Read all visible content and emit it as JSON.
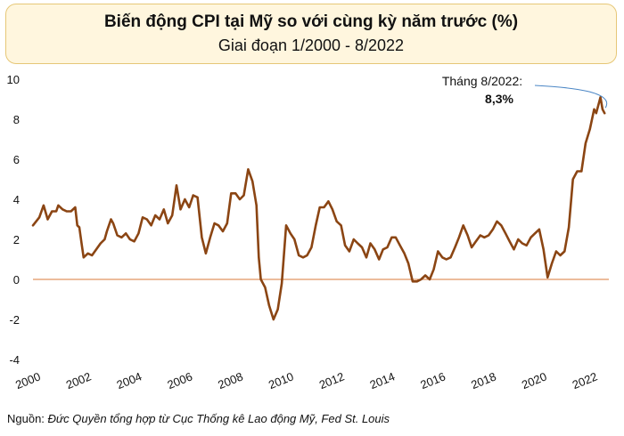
{
  "header": {
    "title": "Biến động CPI tại Mỹ so với cùng kỳ năm trước (%)",
    "subtitle": "Giai đoạn 1/2000 - 8/2022"
  },
  "annotation": {
    "line1": "Tháng 8/2022:",
    "line2": "8,3%"
  },
  "footer": {
    "source_prefix": "Nguồn:",
    "source_text": "Đức Quyền tổng hợp từ Cục Thống kê Lao động Mỹ, Fed St. Louis"
  },
  "colors": {
    "series": "#8b4513",
    "zero_line": "#d9793a",
    "title_bg": "#fff6de",
    "title_border": "#e6c777",
    "callout": "#4a86c5"
  },
  "chart_data": {
    "type": "line",
    "title": "Biến động CPI tại Mỹ so với cùng kỳ năm trước (%)",
    "subtitle": "Giai đoạn 1/2000 - 8/2022",
    "xlabel": "",
    "ylabel": "",
    "xlim": [
      2000,
      2022.75
    ],
    "ylim": [
      -4,
      10
    ],
    "x_ticks": [
      2000,
      2002,
      2004,
      2006,
      2008,
      2010,
      2012,
      2014,
      2016,
      2018,
      2020,
      2022
    ],
    "y_ticks": [
      -4,
      -2,
      0,
      2,
      4,
      6,
      8,
      10
    ],
    "grid": false,
    "zero_line": true,
    "series": [
      {
        "points": [
          [
            2000.0,
            2.7
          ],
          [
            2000.25,
            3.1
          ],
          [
            2000.42,
            3.7
          ],
          [
            2000.58,
            3.0
          ],
          [
            2000.75,
            3.4
          ],
          [
            2000.92,
            3.4
          ],
          [
            2001.0,
            3.7
          ],
          [
            2001.17,
            3.5
          ],
          [
            2001.33,
            3.4
          ],
          [
            2001.5,
            3.4
          ],
          [
            2001.67,
            3.6
          ],
          [
            2001.75,
            2.7
          ],
          [
            2001.83,
            2.6
          ],
          [
            2001.92,
            1.8
          ],
          [
            2002.0,
            1.1
          ],
          [
            2002.17,
            1.3
          ],
          [
            2002.33,
            1.2
          ],
          [
            2002.5,
            1.5
          ],
          [
            2002.67,
            1.8
          ],
          [
            2002.83,
            2.0
          ],
          [
            2002.92,
            2.4
          ],
          [
            2003.08,
            3.0
          ],
          [
            2003.17,
            2.8
          ],
          [
            2003.33,
            2.2
          ],
          [
            2003.5,
            2.1
          ],
          [
            2003.67,
            2.3
          ],
          [
            2003.83,
            2.0
          ],
          [
            2004.0,
            1.9
          ],
          [
            2004.17,
            2.3
          ],
          [
            2004.33,
            3.1
          ],
          [
            2004.5,
            3.0
          ],
          [
            2004.67,
            2.7
          ],
          [
            2004.83,
            3.2
          ],
          [
            2005.0,
            3.0
          ],
          [
            2005.17,
            3.5
          ],
          [
            2005.33,
            2.8
          ],
          [
            2005.5,
            3.2
          ],
          [
            2005.67,
            4.7
          ],
          [
            2005.83,
            3.5
          ],
          [
            2006.0,
            4.0
          ],
          [
            2006.17,
            3.6
          ],
          [
            2006.33,
            4.2
          ],
          [
            2006.5,
            4.1
          ],
          [
            2006.67,
            2.1
          ],
          [
            2006.83,
            1.3
          ],
          [
            2007.0,
            2.1
          ],
          [
            2007.17,
            2.8
          ],
          [
            2007.33,
            2.7
          ],
          [
            2007.5,
            2.4
          ],
          [
            2007.67,
            2.8
          ],
          [
            2007.83,
            4.3
          ],
          [
            2008.0,
            4.3
          ],
          [
            2008.17,
            4.0
          ],
          [
            2008.33,
            4.2
          ],
          [
            2008.5,
            5.5
          ],
          [
            2008.67,
            4.9
          ],
          [
            2008.83,
            3.7
          ],
          [
            2008.92,
            1.1
          ],
          [
            2009.0,
            0.0
          ],
          [
            2009.17,
            -0.4
          ],
          [
            2009.33,
            -1.3
          ],
          [
            2009.5,
            -2.0
          ],
          [
            2009.67,
            -1.5
          ],
          [
            2009.83,
            -0.2
          ],
          [
            2010.0,
            2.7
          ],
          [
            2010.17,
            2.3
          ],
          [
            2010.33,
            2.0
          ],
          [
            2010.5,
            1.2
          ],
          [
            2010.67,
            1.1
          ],
          [
            2010.83,
            1.2
          ],
          [
            2011.0,
            1.6
          ],
          [
            2011.17,
            2.7
          ],
          [
            2011.33,
            3.6
          ],
          [
            2011.5,
            3.6
          ],
          [
            2011.67,
            3.9
          ],
          [
            2011.83,
            3.5
          ],
          [
            2012.0,
            2.9
          ],
          [
            2012.17,
            2.7
          ],
          [
            2012.33,
            1.7
          ],
          [
            2012.5,
            1.4
          ],
          [
            2012.67,
            2.0
          ],
          [
            2012.83,
            1.8
          ],
          [
            2013.0,
            1.6
          ],
          [
            2013.17,
            1.1
          ],
          [
            2013.33,
            1.8
          ],
          [
            2013.5,
            1.5
          ],
          [
            2013.67,
            1.0
          ],
          [
            2013.83,
            1.5
          ],
          [
            2014.0,
            1.6
          ],
          [
            2014.17,
            2.1
          ],
          [
            2014.33,
            2.1
          ],
          [
            2014.5,
            1.7
          ],
          [
            2014.67,
            1.3
          ],
          [
            2014.83,
            0.8
          ],
          [
            2015.0,
            -0.1
          ],
          [
            2015.17,
            -0.1
          ],
          [
            2015.33,
            0.0
          ],
          [
            2015.5,
            0.2
          ],
          [
            2015.67,
            0.0
          ],
          [
            2015.83,
            0.5
          ],
          [
            2016.0,
            1.4
          ],
          [
            2016.17,
            1.1
          ],
          [
            2016.33,
            1.0
          ],
          [
            2016.5,
            1.1
          ],
          [
            2016.67,
            1.6
          ],
          [
            2016.83,
            2.1
          ],
          [
            2017.0,
            2.7
          ],
          [
            2017.17,
            2.2
          ],
          [
            2017.33,
            1.6
          ],
          [
            2017.5,
            1.9
          ],
          [
            2017.67,
            2.2
          ],
          [
            2017.83,
            2.1
          ],
          [
            2018.0,
            2.2
          ],
          [
            2018.17,
            2.5
          ],
          [
            2018.33,
            2.9
          ],
          [
            2018.5,
            2.7
          ],
          [
            2018.67,
            2.3
          ],
          [
            2018.83,
            1.9
          ],
          [
            2019.0,
            1.5
          ],
          [
            2019.17,
            2.0
          ],
          [
            2019.33,
            1.8
          ],
          [
            2019.5,
            1.7
          ],
          [
            2019.67,
            2.1
          ],
          [
            2019.83,
            2.3
          ],
          [
            2020.0,
            2.5
          ],
          [
            2020.17,
            1.5
          ],
          [
            2020.33,
            0.1
          ],
          [
            2020.5,
            0.8
          ],
          [
            2020.67,
            1.4
          ],
          [
            2020.83,
            1.2
          ],
          [
            2021.0,
            1.4
          ],
          [
            2021.17,
            2.6
          ],
          [
            2021.33,
            5.0
          ],
          [
            2021.5,
            5.4
          ],
          [
            2021.67,
            5.4
          ],
          [
            2021.83,
            6.8
          ],
          [
            2022.0,
            7.5
          ],
          [
            2022.17,
            8.5
          ],
          [
            2022.25,
            8.3
          ],
          [
            2022.42,
            9.1
          ],
          [
            2022.5,
            8.5
          ],
          [
            2022.58,
            8.3
          ]
        ]
      }
    ],
    "annotations": [
      {
        "text": "Tháng 8/2022:",
        "value_text": "8,3%",
        "x": 2022.58,
        "y": 8.3
      }
    ]
  }
}
